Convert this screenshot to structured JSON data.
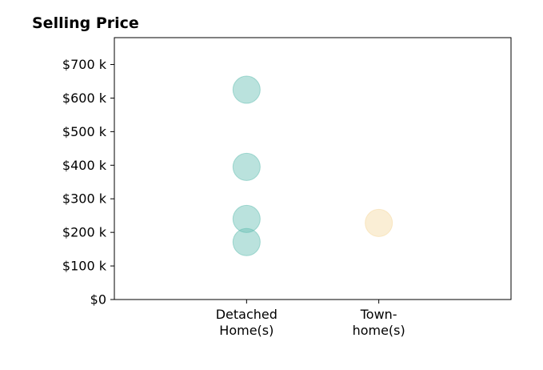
{
  "chart_data": {
    "type": "scatter",
    "title": "Selling Price",
    "xlabel": "",
    "ylabel": "",
    "categories": [
      [
        "Detached",
        "Home(s)"
      ],
      [
        "Town-",
        "home(s)"
      ]
    ],
    "y_ticks": [
      {
        "value": 0,
        "label": "$0"
      },
      {
        "value": 100,
        "label": "$100 k"
      },
      {
        "value": 200,
        "label": "$200 k"
      },
      {
        "value": 300,
        "label": "$300 k"
      },
      {
        "value": 400,
        "label": "$400 k"
      },
      {
        "value": 500,
        "label": "$500 k"
      },
      {
        "value": 600,
        "label": "$600 k"
      },
      {
        "value": 700,
        "label": "$700 k"
      }
    ],
    "ylim": [
      0,
      780
    ],
    "xlim": [
      0,
      3
    ],
    "grid": false,
    "series": [
      {
        "category": 0,
        "color": "#66bfb3",
        "values": [
          625,
          395,
          240,
          171
        ]
      },
      {
        "category": 1,
        "color": "#f5d9a1",
        "values": [
          228
        ]
      }
    ]
  }
}
